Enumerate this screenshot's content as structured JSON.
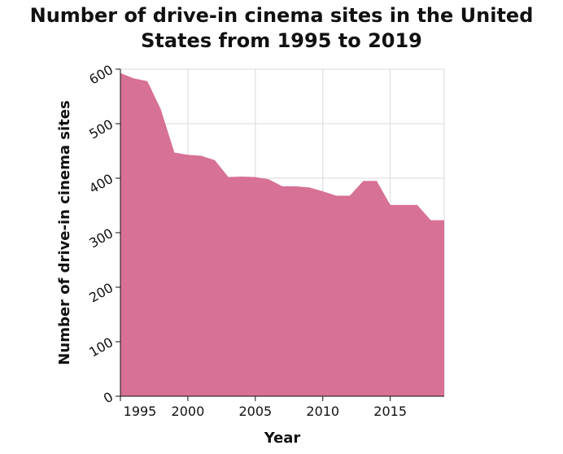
{
  "chart_data": {
    "type": "area",
    "title_lines": [
      "Number of drive-in cinema sites in the United",
      "States from 1995 to 2019"
    ],
    "xlabel": "Year",
    "ylabel": "Number of drive-in cinema sites",
    "xlim": [
      1995,
      2019
    ],
    "ylim": [
      0,
      600
    ],
    "xticks": [
      1995,
      2000,
      2005,
      2010,
      2015
    ],
    "yticks": [
      0,
      100,
      200,
      300,
      400,
      500,
      600
    ],
    "grid": true,
    "area_color": "#d77195",
    "x": [
      1995,
      1996,
      1997,
      1998,
      1999,
      2000,
      2001,
      2002,
      2003,
      2004,
      2005,
      2006,
      2007,
      2008,
      2009,
      2010,
      2011,
      2012,
      2013,
      2014,
      2015,
      2016,
      2017,
      2018,
      2019
    ],
    "values": [
      593,
      583,
      578,
      526,
      447,
      443,
      441,
      433,
      402,
      403,
      402,
      398,
      385,
      385,
      383,
      376,
      368,
      368,
      395,
      395,
      351,
      351,
      351,
      323,
      323
    ]
  }
}
